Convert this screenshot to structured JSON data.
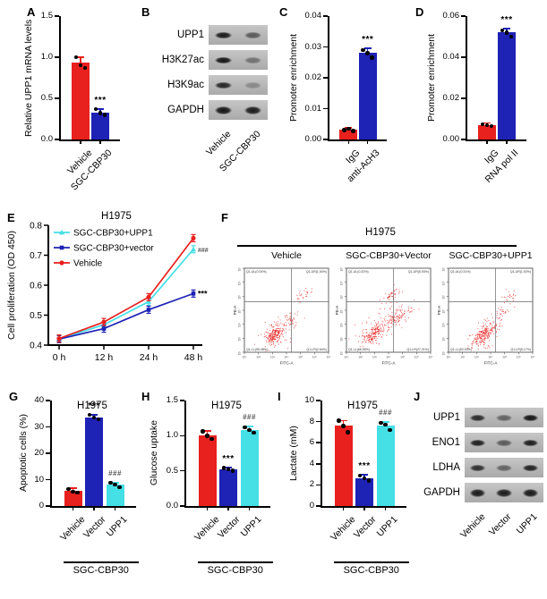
{
  "colors": {
    "red": "#e8201e",
    "blue": "#1e22b5",
    "cyan": "#45dfe6",
    "black": "#000000",
    "sig_hash": "#555555"
  },
  "panels": {
    "A": {
      "letter": "A"
    },
    "B": {
      "letter": "B",
      "blot": {
        "rows": [
          {
            "label": "UPP1",
            "bands": [
              0.92,
              0.55
            ]
          },
          {
            "label": "H3K27ac",
            "bands": [
              0.95,
              0.42
            ]
          },
          {
            "label": "H3K9ac",
            "bands": [
              0.85,
              0.28
            ]
          },
          {
            "label": "GAPDH",
            "bands": [
              0.95,
              0.92
            ]
          }
        ],
        "lanes": [
          "Vehicle",
          "SGC-CBP30"
        ]
      }
    },
    "C": {
      "letter": "C"
    },
    "D": {
      "letter": "D"
    },
    "E": {
      "letter": "E"
    },
    "F": {
      "letter": "F",
      "flow": {
        "title": "H1975",
        "xlabel": "FITC-A",
        "ylabel": "PE-A",
        "axis_ticks": [
          "10¹",
          "10²",
          "10³",
          "10⁴",
          "10⁵",
          "10⁶",
          "10⁷"
        ],
        "plots": [
          {
            "name": "Vehicle",
            "quadrants": {
              "UL": "Q1-UL(0.04%)",
              "UR": "Q1-UR(1.54%)",
              "LL": "Q1-LL(95.48%)",
              "LR": "Q1-LR(2.64%)"
            }
          },
          {
            "name": "SGC-CBP30+Vector",
            "quadrants": {
              "UL": "Q1-UL(0.32%)",
              "UR": "Q1-UR(5.93%)",
              "LL": "Q1-LL(66.55%)",
              "LR": "Q1-LR(27.21%)"
            }
          },
          {
            "name": "SGC-CBP30+UPP1",
            "quadrants": {
              "UL": "Q1-UL(0.31%)",
              "UR": "Q1-UR(1.92%)",
              "LL": "Q1-LL(92.93%)",
              "LR": "Q1-LR(5.17%)"
            }
          }
        ]
      }
    },
    "G": {
      "letter": "G"
    },
    "H": {
      "letter": "H"
    },
    "I": {
      "letter": "I"
    },
    "J": {
      "letter": "J",
      "blot": {
        "rows": [
          {
            "label": "UPP1",
            "bands": [
              0.82,
              0.5,
              0.95
            ]
          },
          {
            "label": "ENO1",
            "bands": [
              0.9,
              0.55,
              0.9
            ]
          },
          {
            "label": "LDHA",
            "bands": [
              0.8,
              0.5,
              0.88
            ]
          },
          {
            "label": "GAPDH",
            "bands": [
              0.92,
              0.92,
              0.92
            ]
          }
        ],
        "lanes": [
          "Vehicle",
          "Vector",
          "UPP1"
        ],
        "group": {
          "label": "SGC-CBP30",
          "from": 1,
          "to": 2
        }
      }
    }
  },
  "chart_data": [
    {
      "panel": "A",
      "type": "bar",
      "ylabel": "Relative UPP1 mRNA levels",
      "ylim": [
        0,
        1.5
      ],
      "yticks": [
        "0.0",
        "0.5",
        "1.0",
        "1.5"
      ],
      "categories": [
        "Vehicle",
        "SGC-CBP30"
      ],
      "values": [
        0.93,
        0.33
      ],
      "colors": [
        "red",
        "blue"
      ],
      "sig": [
        "",
        "***"
      ],
      "dots": [
        [
          1.0,
          0.9,
          0.87
        ],
        [
          0.37,
          0.32,
          0.3
        ]
      ],
      "err": [
        0.07,
        0.04
      ]
    },
    {
      "panel": "C",
      "type": "bar",
      "ylabel": "Promoter enrichment",
      "ylim": [
        0,
        0.04
      ],
      "yticks": [
        "0.00",
        "0.01",
        "0.02",
        "0.03",
        "0.04"
      ],
      "categories": [
        "IgG",
        "anti-AcH3"
      ],
      "values": [
        0.0032,
        0.028
      ],
      "colors": [
        "red",
        "blue"
      ],
      "sig": [
        "",
        "***"
      ],
      "dots": [
        [
          0.003,
          0.0035,
          0.0028
        ],
        [
          0.029,
          0.028,
          0.0265
        ]
      ],
      "err": [
        0.0005,
        0.0015
      ]
    },
    {
      "panel": "D",
      "type": "bar",
      "ylabel": "Promoter enrichment",
      "ylim": [
        0,
        0.06
      ],
      "yticks": [
        "0.00",
        "0.02",
        "0.04",
        "0.06"
      ],
      "categories": [
        "IgG",
        "RNA pol II"
      ],
      "values": [
        0.007,
        0.052
      ],
      "colors": [
        "red",
        "blue"
      ],
      "sig": [
        "",
        "***"
      ],
      "dots": [
        [
          0.0075,
          0.007,
          0.0065
        ],
        [
          0.053,
          0.052,
          0.05
        ]
      ],
      "err": [
        0.001,
        0.002
      ]
    },
    {
      "panel": "E",
      "type": "line",
      "title": "H1975",
      "ylabel": "Cell proliferation (OD 450)",
      "ylim": [
        0.4,
        0.8
      ],
      "yticks": [
        "0.4",
        "0.5",
        "0.6",
        "0.7",
        "0.8"
      ],
      "x": [
        "0 h",
        "12 h",
        "24 h",
        "48 h"
      ],
      "err": 0.012,
      "legend_position": "top-left",
      "series": [
        {
          "name": "SGC-CBP30+UPP1",
          "color": "cyan",
          "marker": "triangle",
          "values": [
            0.42,
            0.468,
            0.545,
            0.72
          ],
          "end_sig": "###"
        },
        {
          "name": "SGC-CBP30+vector",
          "color": "blue",
          "marker": "square",
          "values": [
            0.42,
            0.455,
            0.518,
            0.572
          ],
          "end_sig": "***"
        },
        {
          "name": "Vehicle",
          "color": "red",
          "marker": "circle",
          "values": [
            0.422,
            0.477,
            0.56,
            0.757
          ],
          "end_sig": ""
        }
      ]
    },
    {
      "panel": "G",
      "type": "bar",
      "title": "H1975",
      "ylabel": "Apoptotic cells (%)",
      "ylim": [
        0,
        40
      ],
      "yticks": [
        "0",
        "10",
        "20",
        "30",
        "40"
      ],
      "categories": [
        "Vehicle",
        "Vector",
        "UPP1"
      ],
      "values": [
        5.8,
        33.5,
        8.0
      ],
      "colors": [
        "red",
        "blue",
        "cyan"
      ],
      "sig": [
        "",
        "***",
        "###"
      ],
      "dots": [
        [
          6.5,
          5.5,
          5.0
        ],
        [
          34.5,
          33.5,
          32.8
        ],
        [
          8.8,
          8.2,
          7.2
        ]
      ],
      "err": [
        1.0,
        1.0,
        0.8
      ],
      "group": {
        "label": "SGC-CBP30",
        "from": 1,
        "to": 2
      }
    },
    {
      "panel": "H",
      "type": "bar",
      "title": "H1975",
      "ylabel": "Glucose uptake",
      "ylim": [
        0,
        1.5
      ],
      "yticks": [
        "0.0",
        "0.5",
        "1.0",
        "1.5"
      ],
      "categories": [
        "Vehicle",
        "Vector",
        "UPP1"
      ],
      "values": [
        1.0,
        0.52,
        1.08
      ],
      "colors": [
        "red",
        "blue",
        "cyan"
      ],
      "sig": [
        "",
        "***",
        "###"
      ],
      "dots": [
        [
          1.06,
          1.0,
          0.95
        ],
        [
          0.54,
          0.52,
          0.5
        ],
        [
          1.12,
          1.08,
          1.04
        ]
      ],
      "err": [
        0.07,
        0.03,
        0.05
      ],
      "group": {
        "label": "SGC-CBP30",
        "from": 1,
        "to": 2
      }
    },
    {
      "panel": "I",
      "type": "bar",
      "title": "H1975",
      "ylabel": "Lactate (mM)",
      "ylim": [
        0,
        10
      ],
      "yticks": [
        "0",
        "2",
        "4",
        "6",
        "8",
        "10"
      ],
      "categories": [
        "Vehicle",
        "Vector",
        "UPP1"
      ],
      "values": [
        7.6,
        2.65,
        7.6
      ],
      "colors": [
        "red",
        "blue",
        "cyan"
      ],
      "sig": [
        "",
        "***",
        "###"
      ],
      "dots": [
        [
          8.1,
          7.6,
          7.0
        ],
        [
          2.9,
          2.65,
          2.4
        ],
        [
          7.9,
          7.7,
          7.2
        ]
      ],
      "err": [
        0.5,
        0.3,
        0.35
      ],
      "group": {
        "label": "SGC-CBP30",
        "from": 1,
        "to": 2
      }
    }
  ]
}
